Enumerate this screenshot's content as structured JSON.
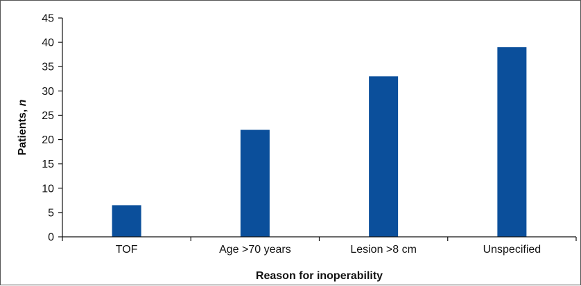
{
  "chart_data": {
    "type": "bar",
    "categories": [
      "TOF",
      "Age >70 years",
      "Lesion >8 cm",
      "Unspecified"
    ],
    "values": [
      6.5,
      22,
      33,
      39
    ],
    "xlabel": "Reason for inoperability",
    "ylabel_main": "Patients, ",
    "ylabel_italic": "n",
    "ylim": [
      0,
      45
    ],
    "yticks": [
      0,
      5,
      10,
      15,
      20,
      25,
      30,
      35,
      40,
      45
    ],
    "grid": false,
    "legend": "none",
    "bar_color": "#0b4f9b"
  }
}
